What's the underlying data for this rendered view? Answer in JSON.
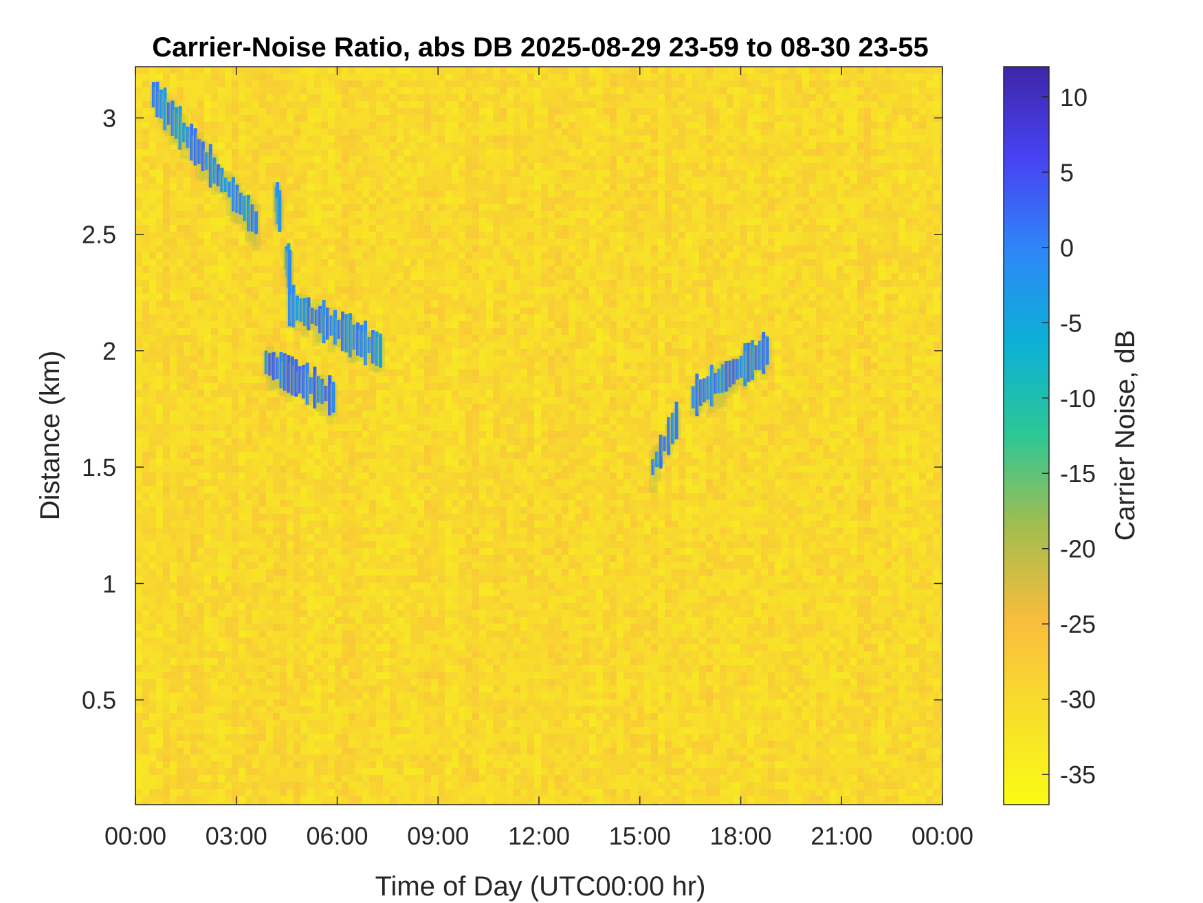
{
  "chart_data": {
    "type": "heatmap",
    "title": "Carrier-Noise Ratio, abs DB 2025-08-29 23-59 to 08-30 23-55",
    "xlabel": "Time of Day (UTC00:00 hr)",
    "ylabel": "Distance (km)",
    "colorbar_label": "Carrier Noise, dB",
    "x_unit": "hours",
    "xlim": [
      0,
      24
    ],
    "ylim": [
      0.05,
      3.22
    ],
    "clim": [
      -37,
      12
    ],
    "x_ticks": [
      {
        "value": 0,
        "label": "00:00"
      },
      {
        "value": 3,
        "label": "03:00"
      },
      {
        "value": 6,
        "label": "06:00"
      },
      {
        "value": 9,
        "label": "09:00"
      },
      {
        "value": 12,
        "label": "12:00"
      },
      {
        "value": 15,
        "label": "15:00"
      },
      {
        "value": 18,
        "label": "18:00"
      },
      {
        "value": 21,
        "label": "21:00"
      },
      {
        "value": 24,
        "label": "00:00"
      }
    ],
    "y_ticks": [
      {
        "value": 0.5,
        "label": "0.5"
      },
      {
        "value": 1,
        "label": "1"
      },
      {
        "value": 1.5,
        "label": "1.5"
      },
      {
        "value": 2,
        "label": "2"
      },
      {
        "value": 2.5,
        "label": "2.5"
      },
      {
        "value": 3,
        "label": "3"
      }
    ],
    "colorbar_ticks": [
      {
        "value": 10,
        "label": "10"
      },
      {
        "value": 5,
        "label": "5"
      },
      {
        "value": 0,
        "label": "0"
      },
      {
        "value": -5,
        "label": "-5"
      },
      {
        "value": -10,
        "label": "-10"
      },
      {
        "value": -15,
        "label": "-15"
      },
      {
        "value": -20,
        "label": "-20"
      },
      {
        "value": -25,
        "label": "-25"
      },
      {
        "value": -30,
        "label": "-30"
      },
      {
        "value": -35,
        "label": "-35"
      }
    ],
    "colormap": [
      "#3e26a8",
      "#4743f3",
      "#2e87f7",
      "#0bb1d5",
      "#2ec795",
      "#a4bd4e",
      "#f9bd3d",
      "#f8de2b",
      "#f9fb15"
    ],
    "background_value": -30,
    "features": [
      {
        "t_start": 0.55,
        "t_end": 3.6,
        "d_start": 3.1,
        "d_end": 2.55,
        "value": 2
      },
      {
        "t_start": 4.2,
        "t_end": 4.3,
        "d_start": 2.65,
        "d_end": 2.6,
        "value": 1
      },
      {
        "t_start": 4.5,
        "t_end": 4.6,
        "d_start": 2.4,
        "d_end": 2.35,
        "value": 0
      },
      {
        "t_start": 3.9,
        "t_end": 5.9,
        "d_start": 1.95,
        "d_end": 1.8,
        "value": 4
      },
      {
        "t_start": 4.6,
        "t_end": 7.3,
        "d_start": 2.2,
        "d_end": 2.0,
        "value": 2
      },
      {
        "t_start": 15.4,
        "t_end": 16.1,
        "d_start": 1.5,
        "d_end": 1.7,
        "value": 3
      },
      {
        "t_start": 16.6,
        "t_end": 18.8,
        "d_start": 1.8,
        "d_end": 2.0,
        "value": 3
      }
    ]
  }
}
